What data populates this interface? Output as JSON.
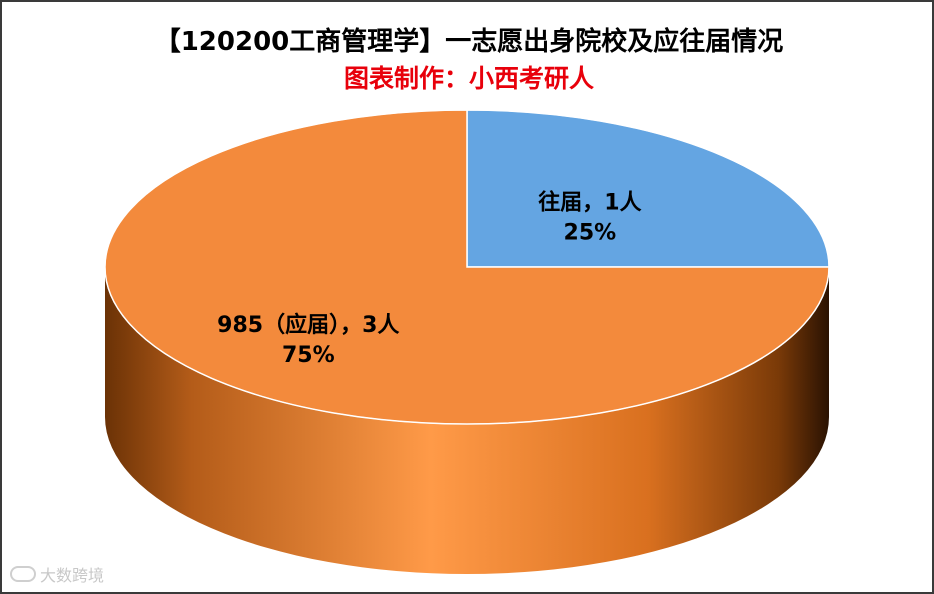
{
  "chart_data": {
    "type": "pie",
    "title": "【120200工商管理学】一志愿出身院校及应往届情况",
    "subtitle": "图表制作：小西考研人",
    "slices": [
      {
        "label": "往届",
        "value": 1,
        "percent": "25%",
        "display": "往届，1人",
        "color": "#64A5E2"
      },
      {
        "label": "985（应届）",
        "value": 3,
        "percent": "75%",
        "display": "985（应届），3人",
        "color": "#F38A3C"
      }
    ],
    "style": "3d-pie"
  },
  "colors": {
    "subtitle": "#E8000B",
    "border": "#3a3a3a"
  },
  "watermark": {
    "text": "大数跨境"
  }
}
